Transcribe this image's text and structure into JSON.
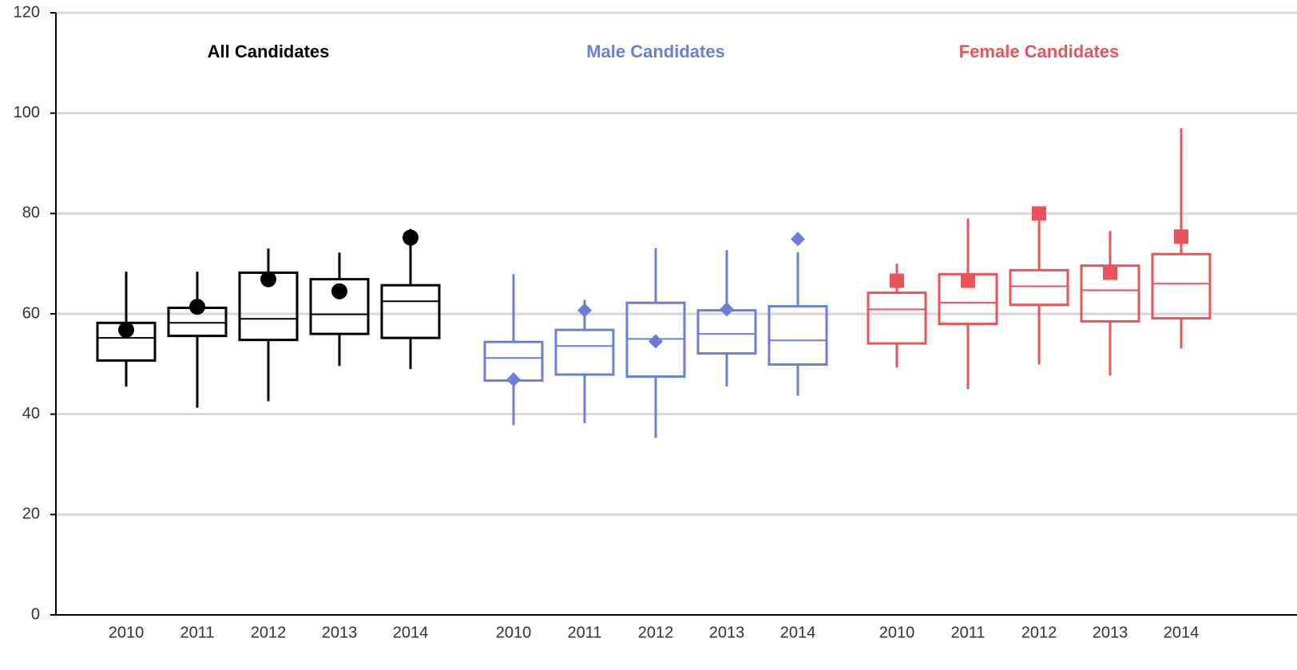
{
  "chart_data": {
    "type": "box",
    "categories": [
      "2010",
      "2011",
      "2012",
      "2013",
      "2014"
    ],
    "ylim": [
      0,
      120
    ],
    "yticks": [
      0,
      20,
      40,
      60,
      80,
      100,
      120
    ],
    "grid": true,
    "series": [
      {
        "name": "All Candidates",
        "color": "#000000",
        "marker": "circle",
        "low": [
          45.5,
          41.3,
          42.6,
          49.6,
          49.0
        ],
        "q1": [
          50.7,
          55.6,
          54.8,
          56.0,
          55.2
        ],
        "median": [
          55.2,
          58.2,
          59.0,
          59.9,
          62.5
        ],
        "q3": [
          58.2,
          61.2,
          68.2,
          66.9,
          65.7
        ],
        "high": [
          68.4,
          68.4,
          73.0,
          72.2,
          76.9
        ],
        "mean": [
          56.8,
          61.4,
          66.9,
          64.5,
          75.2
        ]
      },
      {
        "name": "Male Candidates",
        "color": "#6b7fd7",
        "marker": "diamond",
        "low": [
          37.8,
          38.2,
          35.3,
          45.5,
          43.7
        ],
        "q1": [
          46.7,
          47.9,
          47.5,
          52.1,
          49.9
        ],
        "median": [
          51.2,
          53.6,
          55.0,
          56.0,
          54.7
        ],
        "q3": [
          54.4,
          56.8,
          62.2,
          60.7,
          61.5
        ],
        "high": [
          67.9,
          62.8,
          73.1,
          72.7,
          72.3
        ],
        "mean": [
          46.9,
          60.7,
          54.5,
          60.9,
          74.9
        ]
      },
      {
        "name": "Female Candidates",
        "color": "#e8545a",
        "marker": "square",
        "low": [
          49.3,
          45.0,
          49.9,
          47.7,
          53.1
        ],
        "q1": [
          54.1,
          58.0,
          61.8,
          58.5,
          59.1
        ],
        "median": [
          60.9,
          62.2,
          65.5,
          64.7,
          66.0
        ],
        "q3": [
          64.2,
          67.9,
          68.7,
          69.6,
          71.9
        ],
        "high": [
          70.0,
          79.0,
          80.4,
          76.5,
          97.0
        ],
        "mean": [
          66.6,
          66.6,
          80.0,
          68.2,
          75.4
        ]
      }
    ]
  }
}
